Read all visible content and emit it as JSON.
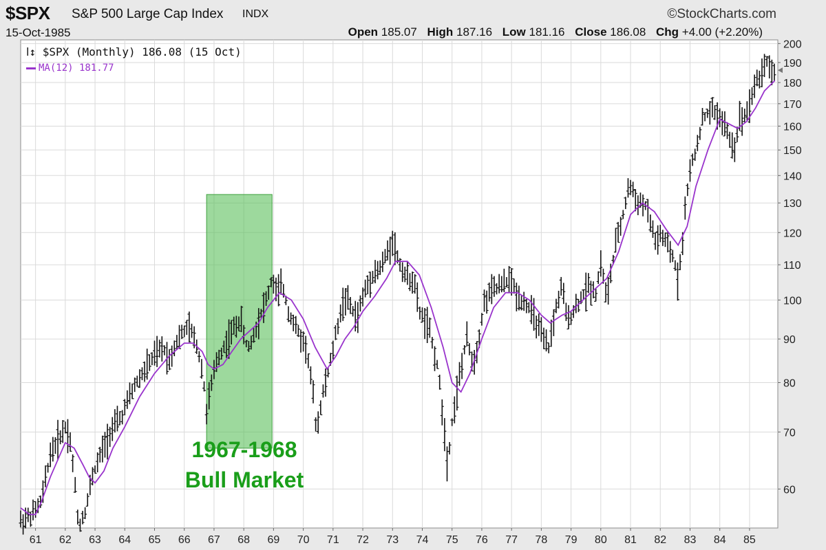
{
  "header": {
    "symbol": "$SPX",
    "name": "S&P 500 Large Cap Index",
    "type": "INDX",
    "watermark": "©StockCharts.com",
    "date": "15-Oct-1985",
    "open_label": "Open",
    "open": "185.07",
    "high_label": "High",
    "high": "187.16",
    "low_label": "Low",
    "low": "181.16",
    "close_label": "Close",
    "close": "186.08",
    "chg_label": "Chg",
    "chg": "+4.00 (+2.20%)"
  },
  "legend": {
    "price": "$SPX (Monthly) 186.08 (15 Oct)",
    "ma": "MA(12) 181.77"
  },
  "annotation": {
    "line1": "1967-1968",
    "line2": "Bull Market"
  },
  "colors": {
    "bars": "#111111",
    "ma": "#9933cc",
    "highlight": "#5cbf5c",
    "annotation": "#1a9e1a"
  },
  "chart_data": {
    "type": "line",
    "scale": "log",
    "ylim": [
      54,
      202
    ],
    "xlim": [
      1960.5,
      1985.95
    ],
    "y_ticks": [
      60,
      70,
      80,
      90,
      100,
      110,
      120,
      130,
      140,
      150,
      160,
      170,
      180,
      190,
      200
    ],
    "x_ticks": [
      {
        "label": "61",
        "x": 1961
      },
      {
        "label": "62",
        "x": 1962
      },
      {
        "label": "63",
        "x": 1963
      },
      {
        "label": "64",
        "x": 1964
      },
      {
        "label": "65",
        "x": 1965
      },
      {
        "label": "66",
        "x": 1966
      },
      {
        "label": "67",
        "x": 1967
      },
      {
        "label": "68",
        "x": 1968
      },
      {
        "label": "69",
        "x": 1969
      },
      {
        "label": "70",
        "x": 1970
      },
      {
        "label": "71",
        "x": 1971
      },
      {
        "label": "72",
        "x": 1972
      },
      {
        "label": "73",
        "x": 1973
      },
      {
        "label": "74",
        "x": 1974
      },
      {
        "label": "75",
        "x": 1975
      },
      {
        "label": "76",
        "x": 1976
      },
      {
        "label": "77",
        "x": 1977
      },
      {
        "label": "78",
        "x": 1978
      },
      {
        "label": "79",
        "x": 1979
      },
      {
        "label": "80",
        "x": 1980
      },
      {
        "label": "81",
        "x": 1981
      },
      {
        "label": "82",
        "x": 1982
      },
      {
        "label": "83",
        "x": 1983
      },
      {
        "label": "84",
        "x": 1984
      },
      {
        "label": "85",
        "x": 1985
      }
    ],
    "highlight": {
      "x0": 1966.75,
      "x1": 1968.95,
      "y0": 67,
      "y1": 133
    },
    "price_path": [
      [
        1960.5,
        55
      ],
      [
        1960.9,
        56
      ],
      [
        1961.2,
        58
      ],
      [
        1961.5,
        66
      ],
      [
        1961.8,
        69
      ],
      [
        1962.0,
        71
      ],
      [
        1962.15,
        69
      ],
      [
        1962.3,
        62
      ],
      [
        1962.45,
        54
      ],
      [
        1962.7,
        57
      ],
      [
        1962.9,
        62
      ],
      [
        1963.2,
        66
      ],
      [
        1963.5,
        70
      ],
      [
        1963.9,
        73
      ],
      [
        1964.3,
        79
      ],
      [
        1964.7,
        83
      ],
      [
        1965.0,
        86
      ],
      [
        1965.3,
        88
      ],
      [
        1965.5,
        85
      ],
      [
        1965.7,
        89
      ],
      [
        1966.0,
        92
      ],
      [
        1966.15,
        93
      ],
      [
        1966.4,
        89
      ],
      [
        1966.6,
        83
      ],
      [
        1966.75,
        74
      ],
      [
        1966.9,
        79
      ],
      [
        1967.1,
        85
      ],
      [
        1967.4,
        89
      ],
      [
        1967.7,
        93
      ],
      [
        1967.9,
        95
      ],
      [
        1968.05,
        89
      ],
      [
        1968.2,
        88
      ],
      [
        1968.5,
        95
      ],
      [
        1968.8,
        101
      ],
      [
        1968.95,
        106
      ],
      [
        1969.1,
        102
      ],
      [
        1969.3,
        104
      ],
      [
        1969.5,
        97
      ],
      [
        1969.8,
        92
      ],
      [
        1970.1,
        88
      ],
      [
        1970.3,
        79
      ],
      [
        1970.45,
        70
      ],
      [
        1970.6,
        76
      ],
      [
        1970.9,
        84
      ],
      [
        1971.2,
        95
      ],
      [
        1971.4,
        101
      ],
      [
        1971.6,
        98
      ],
      [
        1971.8,
        95
      ],
      [
        1972.0,
        101
      ],
      [
        1972.3,
        107
      ],
      [
        1972.6,
        109
      ],
      [
        1972.85,
        114
      ],
      [
        1973.0,
        118
      ],
      [
        1973.2,
        111
      ],
      [
        1973.5,
        106
      ],
      [
        1973.7,
        106
      ],
      [
        1973.9,
        97
      ],
      [
        1974.2,
        93
      ],
      [
        1974.5,
        84
      ],
      [
        1974.7,
        73
      ],
      [
        1974.85,
        64
      ],
      [
        1975.0,
        72
      ],
      [
        1975.3,
        83
      ],
      [
        1975.5,
        90
      ],
      [
        1975.7,
        84
      ],
      [
        1975.85,
        88
      ],
      [
        1976.1,
        100
      ],
      [
        1976.4,
        103
      ],
      [
        1976.7,
        104
      ],
      [
        1976.95,
        106
      ],
      [
        1977.2,
        101
      ],
      [
        1977.5,
        99
      ],
      [
        1977.8,
        95
      ],
      [
        1978.1,
        89
      ],
      [
        1978.25,
        88
      ],
      [
        1978.5,
        98
      ],
      [
        1978.7,
        104
      ],
      [
        1978.85,
        95
      ],
      [
        1979.0,
        96
      ],
      [
        1979.3,
        100
      ],
      [
        1979.6,
        104
      ],
      [
        1979.85,
        102
      ],
      [
        1980.0,
        111
      ],
      [
        1980.2,
        100
      ],
      [
        1980.5,
        116
      ],
      [
        1980.8,
        128
      ],
      [
        1980.95,
        137
      ],
      [
        1981.2,
        131
      ],
      [
        1981.5,
        129
      ],
      [
        1981.7,
        122
      ],
      [
        1981.85,
        117
      ],
      [
        1982.0,
        119
      ],
      [
        1982.3,
        115
      ],
      [
        1982.5,
        110
      ],
      [
        1982.6,
        105
      ],
      [
        1982.75,
        118
      ],
      [
        1982.95,
        139
      ],
      [
        1983.2,
        150
      ],
      [
        1983.4,
        162
      ],
      [
        1983.6,
        166
      ],
      [
        1983.8,
        167
      ],
      [
        1984.0,
        164
      ],
      [
        1984.2,
        159
      ],
      [
        1984.4,
        152
      ],
      [
        1984.5,
        151
      ],
      [
        1984.65,
        163
      ],
      [
        1984.85,
        165
      ],
      [
        1985.0,
        170
      ],
      [
        1985.2,
        180
      ],
      [
        1985.4,
        184
      ],
      [
        1985.55,
        192
      ],
      [
        1985.7,
        187
      ],
      [
        1985.85,
        184
      ]
    ],
    "series": [
      {
        "name": "MA(12)",
        "points": [
          [
            1960.5,
            57
          ],
          [
            1960.8,
            56
          ],
          [
            1961.0,
            56
          ],
          [
            1961.2,
            58
          ],
          [
            1961.5,
            62
          ],
          [
            1962.0,
            68
          ],
          [
            1962.3,
            67
          ],
          [
            1962.6,
            64
          ],
          [
            1962.8,
            62
          ],
          [
            1963.0,
            61
          ],
          [
            1963.3,
            63
          ],
          [
            1963.6,
            67
          ],
          [
            1964.0,
            71
          ],
          [
            1964.5,
            77
          ],
          [
            1965.0,
            82
          ],
          [
            1965.5,
            86
          ],
          [
            1966.0,
            89
          ],
          [
            1966.3,
            89
          ],
          [
            1966.6,
            87
          ],
          [
            1966.8,
            84
          ],
          [
            1967.0,
            83
          ],
          [
            1967.3,
            84
          ],
          [
            1967.6,
            87
          ],
          [
            1967.9,
            90
          ],
          [
            1968.2,
            92
          ],
          [
            1968.5,
            94
          ],
          [
            1968.8,
            98
          ],
          [
            1969.2,
            102
          ],
          [
            1969.6,
            100
          ],
          [
            1970.0,
            95
          ],
          [
            1970.4,
            88
          ],
          [
            1970.8,
            83
          ],
          [
            1971.1,
            86
          ],
          [
            1971.4,
            90
          ],
          [
            1971.7,
            93
          ],
          [
            1972.0,
            97
          ],
          [
            1972.4,
            101
          ],
          [
            1972.8,
            106
          ],
          [
            1973.1,
            111
          ],
          [
            1973.5,
            111
          ],
          [
            1973.9,
            107
          ],
          [
            1974.3,
            98
          ],
          [
            1974.7,
            88
          ],
          [
            1975.0,
            80
          ],
          [
            1975.3,
            78
          ],
          [
            1975.6,
            82
          ],
          [
            1976.0,
            90
          ],
          [
            1976.4,
            98
          ],
          [
            1976.8,
            102
          ],
          [
            1977.2,
            102
          ],
          [
            1977.6,
            100
          ],
          [
            1978.0,
            96
          ],
          [
            1978.3,
            94
          ],
          [
            1978.7,
            96
          ],
          [
            1979.0,
            97
          ],
          [
            1979.4,
            100
          ],
          [
            1979.8,
            103
          ],
          [
            1980.2,
            106
          ],
          [
            1980.6,
            114
          ],
          [
            1981.0,
            126
          ],
          [
            1981.4,
            130
          ],
          [
            1981.8,
            127
          ],
          [
            1982.2,
            121
          ],
          [
            1982.6,
            116
          ],
          [
            1982.9,
            122
          ],
          [
            1983.2,
            136
          ],
          [
            1983.6,
            150
          ],
          [
            1984.0,
            163
          ],
          [
            1984.3,
            161
          ],
          [
            1984.6,
            159
          ],
          [
            1984.9,
            162
          ],
          [
            1985.2,
            168
          ],
          [
            1985.5,
            176
          ],
          [
            1985.85,
            181
          ]
        ]
      }
    ]
  }
}
